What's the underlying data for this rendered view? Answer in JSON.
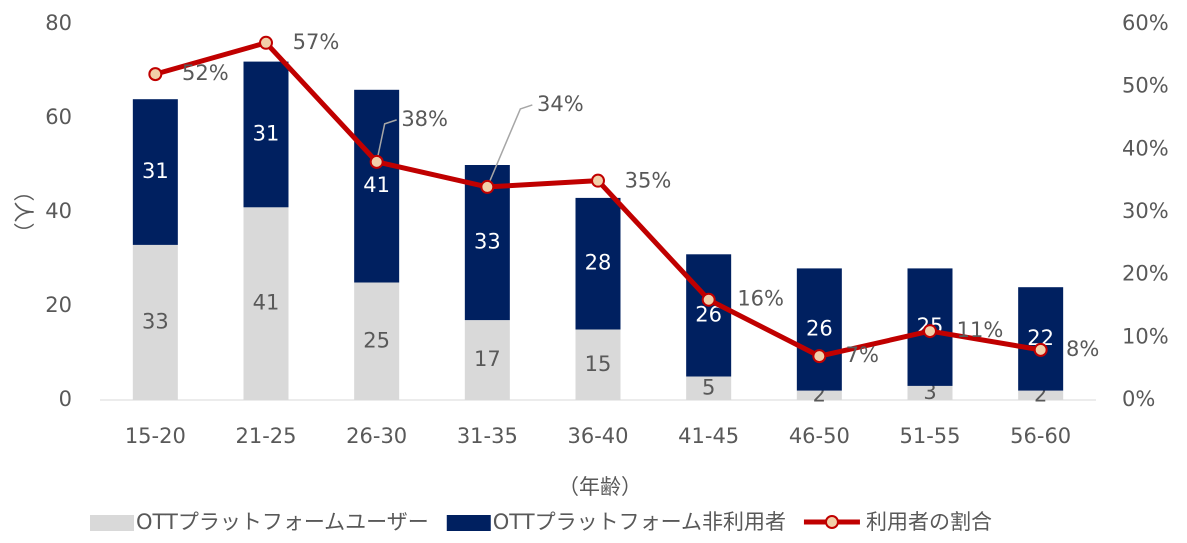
{
  "chart_data": {
    "type": "bar",
    "categories": [
      "15-20",
      "21-25",
      "26-30",
      "31-35",
      "36-40",
      "41-45",
      "46-50",
      "51-55",
      "56-60"
    ],
    "series": [
      {
        "name": "OTTプラットフォームユーザー",
        "color": "#d9d9d9",
        "values": [
          33,
          41,
          25,
          17,
          15,
          5,
          2,
          3,
          2
        ]
      },
      {
        "name": "OTTプラットフォーム非利用者",
        "color": "#002060",
        "values": [
          31,
          31,
          41,
          33,
          28,
          26,
          26,
          25,
          22
        ]
      },
      {
        "name": "利用者の割合",
        "type": "line",
        "axis": "y2",
        "color": "#c00000",
        "values": [
          52,
          57,
          38,
          34,
          35,
          16,
          7,
          11,
          8
        ],
        "value_labels": [
          "52%",
          "57%",
          "38%",
          "34%",
          "35%",
          "16%",
          "7%",
          "11%",
          "8%"
        ]
      }
    ],
    "ylim": [
      0,
      80
    ],
    "yticks": [
      0,
      20,
      40,
      60,
      80
    ],
    "y2lim": [
      0,
      60
    ],
    "y2ticks": [
      {
        "value": 0,
        "label": "0%"
      },
      {
        "value": 10,
        "label": "10%"
      },
      {
        "value": 20,
        "label": "20%"
      },
      {
        "value": 30,
        "label": "30%"
      },
      {
        "value": 40,
        "label": "40%"
      },
      {
        "value": 50,
        "label": "50%"
      },
      {
        "value": 60,
        "label": "60%"
      }
    ],
    "ylabel": "（人）",
    "xlabel": "（年齢）",
    "legend": "bottom"
  }
}
